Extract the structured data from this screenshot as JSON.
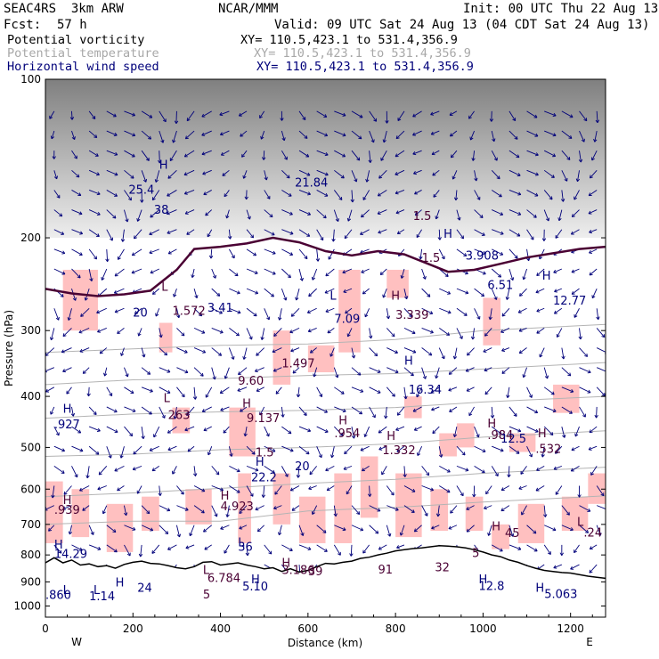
{
  "header": {
    "model": "SEAC4RS  3km ARW",
    "center": "NCAR/MMM",
    "init": "Init: 00 UTC Thu 22 Aug 13",
    "fcst_label": "Fcst:",
    "fcst_value": "57 h",
    "valid": "Valid: 09 UTC Sat 24 Aug 13 (04 CDT Sat 24 Aug 13)"
  },
  "legend": [
    {
      "name": "Potential vorticity",
      "xy": "XY= 110.5,423.1 to 531.4,356.9",
      "color": "#000000",
      "xy_color": "#000000"
    },
    {
      "name": "Potential temperature",
      "xy": "XY= 110.5,423.1 to 531.4,356.9",
      "color": "#a8a8a8",
      "xy_color": "#a8a8a8"
    },
    {
      "name": "Horizontal wind speed",
      "xy": "XY= 110.5,423.1 to 531.4,356.9",
      "color": "#00007a",
      "xy_color": "#00007a"
    }
  ],
  "colors": {
    "pv_line": "#4a0033",
    "theta_line": "#b4b4b4",
    "wind": "#00007a",
    "pink_fill": "#ffc0c0",
    "terrain_line": "#000000",
    "shade_dark": "#555555",
    "shade_light": "#d8d8d8"
  },
  "chart_data": {
    "type": "cross-section",
    "xlabel": "Distance (km)",
    "ylabel": "Pressure (hPa)",
    "xlim": [
      0,
      1280
    ],
    "ylim": [
      100,
      1050
    ],
    "y_scale": "log (pressure, inverted)",
    "x_ticks": [
      0,
      200,
      400,
      600,
      800,
      1000,
      1200
    ],
    "y_ticks": [
      100,
      200,
      300,
      400,
      500,
      600,
      700,
      800,
      900,
      1000
    ],
    "end_labels": {
      "left": "W",
      "right": "E"
    },
    "terrain_surface": [
      [
        0,
        828
      ],
      [
        20,
        810
      ],
      [
        40,
        828
      ],
      [
        60,
        818
      ],
      [
        80,
        836
      ],
      [
        100,
        832
      ],
      [
        120,
        842
      ],
      [
        140,
        838
      ],
      [
        160,
        848
      ],
      [
        180,
        834
      ],
      [
        200,
        826
      ],
      [
        220,
        822
      ],
      [
        240,
        830
      ],
      [
        260,
        832
      ],
      [
        280,
        838
      ],
      [
        300,
        846
      ],
      [
        320,
        850
      ],
      [
        340,
        842
      ],
      [
        360,
        826
      ],
      [
        380,
        824
      ],
      [
        400,
        836
      ],
      [
        420,
        832
      ],
      [
        440,
        828
      ],
      [
        460,
        836
      ],
      [
        480,
        842
      ],
      [
        500,
        850
      ],
      [
        520,
        846
      ],
      [
        540,
        860
      ],
      [
        560,
        850
      ],
      [
        580,
        862
      ],
      [
        600,
        856
      ],
      [
        620,
        842
      ],
      [
        640,
        830
      ],
      [
        660,
        832
      ],
      [
        680,
        826
      ],
      [
        700,
        822
      ],
      [
        720,
        812
      ],
      [
        740,
        808
      ],
      [
        760,
        800
      ],
      [
        780,
        794
      ],
      [
        800,
        786
      ],
      [
        820,
        782
      ],
      [
        840,
        778
      ],
      [
        860,
        776
      ],
      [
        880,
        772
      ],
      [
        900,
        768
      ],
      [
        920,
        770
      ],
      [
        940,
        772
      ],
      [
        960,
        776
      ],
      [
        980,
        782
      ],
      [
        1000,
        790
      ],
      [
        1020,
        800
      ],
      [
        1040,
        806
      ],
      [
        1060,
        818
      ],
      [
        1080,
        826
      ],
      [
        1100,
        838
      ],
      [
        1120,
        848
      ],
      [
        1140,
        856
      ],
      [
        1160,
        860
      ],
      [
        1180,
        864
      ],
      [
        1200,
        866
      ],
      [
        1220,
        872
      ],
      [
        1240,
        878
      ],
      [
        1260,
        882
      ],
      [
        1280,
        886
      ]
    ],
    "tropopause_pv": [
      [
        0,
        250
      ],
      [
        60,
        255
      ],
      [
        120,
        258
      ],
      [
        180,
        256
      ],
      [
        240,
        252
      ],
      [
        300,
        230
      ],
      [
        340,
        210
      ],
      [
        400,
        208
      ],
      [
        460,
        205
      ],
      [
        520,
        200
      ],
      [
        580,
        204
      ],
      [
        640,
        212
      ],
      [
        700,
        216
      ],
      [
        760,
        212
      ],
      [
        820,
        215
      ],
      [
        880,
        225
      ],
      [
        920,
        232
      ],
      [
        980,
        230
      ],
      [
        1040,
        224
      ],
      [
        1100,
        218
      ],
      [
        1160,
        214
      ],
      [
        1220,
        210
      ],
      [
        1280,
        208
      ]
    ],
    "theta_isentropes": [
      {
        "pts": [
          [
            0,
            330
          ],
          [
            200,
            325
          ],
          [
            400,
            320
          ],
          [
            600,
            318
          ],
          [
            800,
            312
          ],
          [
            1000,
            300
          ],
          [
            1280,
            292
          ]
        ]
      },
      {
        "pts": [
          [
            0,
            380
          ],
          [
            200,
            372
          ],
          [
            400,
            370
          ],
          [
            600,
            365
          ],
          [
            800,
            362
          ],
          [
            1000,
            355
          ],
          [
            1280,
            345
          ]
        ]
      },
      {
        "pts": [
          [
            0,
            440
          ],
          [
            200,
            432
          ],
          [
            400,
            428
          ],
          [
            600,
            425
          ],
          [
            800,
            420
          ],
          [
            1000,
            410
          ],
          [
            1280,
            400
          ]
        ]
      },
      {
        "pts": [
          [
            0,
            520
          ],
          [
            200,
            515
          ],
          [
            400,
            505
          ],
          [
            600,
            500
          ],
          [
            800,
            492
          ],
          [
            1000,
            478
          ],
          [
            1280,
            465
          ]
        ]
      },
      {
        "pts": [
          [
            0,
            620
          ],
          [
            200,
            610
          ],
          [
            400,
            598
          ],
          [
            600,
            585
          ],
          [
            800,
            575
          ],
          [
            1000,
            560
          ],
          [
            1280,
            545
          ]
        ]
      },
      {
        "pts": [
          [
            0,
            700
          ],
          [
            200,
            690
          ],
          [
            400,
            690
          ],
          [
            600,
            660
          ],
          [
            800,
            650
          ],
          [
            1000,
            635
          ],
          [
            1280,
            618
          ]
        ]
      }
    ],
    "pink_regions": [
      {
        "x": [
          40,
          120
        ],
        "p": [
          230,
          300
        ]
      },
      {
        "x": [
          260,
          290
        ],
        "p": [
          290,
          330
        ]
      },
      {
        "x": [
          290,
          330
        ],
        "p": [
          420,
          470
        ]
      },
      {
        "x": [
          420,
          480
        ],
        "p": [
          420,
          520
        ]
      },
      {
        "x": [
          520,
          560
        ],
        "p": [
          300,
          380
        ]
      },
      {
        "x": [
          600,
          660
        ],
        "p": [
          320,
          360
        ]
      },
      {
        "x": [
          670,
          720
        ],
        "p": [
          230,
          330
        ]
      },
      {
        "x": [
          780,
          830
        ],
        "p": [
          230,
          260
        ]
      },
      {
        "x": [
          820,
          860
        ],
        "p": [
          400,
          440
        ]
      },
      {
        "x": [
          900,
          940
        ],
        "p": [
          470,
          520
        ]
      },
      {
        "x": [
          940,
          980
        ],
        "p": [
          450,
          500
        ]
      },
      {
        "x": [
          1000,
          1040
        ],
        "p": [
          260,
          320
        ]
      },
      {
        "x": [
          1060,
          1120
        ],
        "p": [
          470,
          510
        ]
      },
      {
        "x": [
          1160,
          1220
        ],
        "p": [
          380,
          430
        ]
      },
      {
        "x": [
          0,
          40
        ],
        "p": [
          580,
          760
        ]
      },
      {
        "x": [
          60,
          100
        ],
        "p": [
          600,
          740
        ]
      },
      {
        "x": [
          140,
          200
        ],
        "p": [
          640,
          790
        ]
      },
      {
        "x": [
          220,
          260
        ],
        "p": [
          620,
          720
        ]
      },
      {
        "x": [
          320,
          380
        ],
        "p": [
          600,
          700
        ]
      },
      {
        "x": [
          440,
          470
        ],
        "p": [
          560,
          760
        ]
      },
      {
        "x": [
          520,
          560
        ],
        "p": [
          560,
          700
        ]
      },
      {
        "x": [
          580,
          640
        ],
        "p": [
          620,
          760
        ]
      },
      {
        "x": [
          660,
          700
        ],
        "p": [
          560,
          760
        ]
      },
      {
        "x": [
          720,
          760
        ],
        "p": [
          520,
          680
        ]
      },
      {
        "x": [
          800,
          860
        ],
        "p": [
          560,
          740
        ]
      },
      {
        "x": [
          880,
          920
        ],
        "p": [
          600,
          720
        ]
      },
      {
        "x": [
          960,
          1000
        ],
        "p": [
          620,
          720
        ]
      },
      {
        "x": [
          1020,
          1060
        ],
        "p": [
          700,
          780
        ]
      },
      {
        "x": [
          1080,
          1140
        ],
        "p": [
          640,
          760
        ]
      },
      {
        "x": [
          1180,
          1240
        ],
        "p": [
          620,
          720
        ]
      },
      {
        "x": [
          1240,
          1280
        ],
        "p": [
          560,
          640
        ]
      }
    ],
    "upper_shading": {
      "p_top": 100,
      "p_bottom": 200
    },
    "annotations": [
      {
        "text": "25.4",
        "x": 190,
        "p": 165,
        "color": "#00007a"
      },
      {
        "text": "H",
        "x": 260,
        "p": 148,
        "color": "#00007a"
      },
      {
        "text": "38",
        "x": 248,
        "p": 180,
        "color": "#00007a"
      },
      {
        "text": "21.84",
        "x": 570,
        "p": 160,
        "color": "#00007a"
      },
      {
        "text": "H",
        "x": 910,
        "p": 200,
        "color": "#00007a"
      },
      {
        "text": "3.908",
        "x": 960,
        "p": 220,
        "color": "#00007a"
      },
      {
        "text": "6.51",
        "x": 1010,
        "p": 250,
        "color": "#00007a"
      },
      {
        "text": "H",
        "x": 1135,
        "p": 240,
        "color": "#00007a"
      },
      {
        "text": "12.77",
        "x": 1160,
        "p": 268,
        "color": "#00007a"
      },
      {
        "text": "1.5",
        "x": 840,
        "p": 185,
        "color": "#4a0033"
      },
      {
        "text": "1.5",
        "x": 860,
        "p": 222,
        "color": "#4a0033"
      },
      {
        "text": "L",
        "x": 265,
        "p": 252,
        "color": "#4a0033"
      },
      {
        "text": "20",
        "x": 200,
        "p": 282,
        "color": "#00007a"
      },
      {
        "text": "1.572",
        "x": 290,
        "p": 280,
        "color": "#4a0033"
      },
      {
        "text": "3.41",
        "x": 370,
        "p": 276,
        "color": "#00007a"
      },
      {
        "text": "L",
        "x": 650,
        "p": 262,
        "color": "#00007a"
      },
      {
        "text": "7.09",
        "x": 660,
        "p": 290,
        "color": "#00007a"
      },
      {
        "text": "H",
        "x": 790,
        "p": 262,
        "color": "#4a0033"
      },
      {
        "text": "3.339",
        "x": 800,
        "p": 285,
        "color": "#4a0033"
      },
      {
        "text": "1.497",
        "x": 540,
        "p": 352,
        "color": "#4a0033"
      },
      {
        "text": "H",
        "x": 820,
        "p": 348,
        "color": "#00007a"
      },
      {
        "text": "16.34",
        "x": 830,
        "p": 395,
        "color": "#00007a"
      },
      {
        "text": "9.60",
        "x": 440,
        "p": 380,
        "color": "#4a0033"
      },
      {
        "text": "L",
        "x": 270,
        "p": 410,
        "color": "#4a0033"
      },
      {
        "text": "263",
        "x": 280,
        "p": 442,
        "color": "#4a0033"
      },
      {
        "text": "H",
        "x": 40,
        "p": 430,
        "color": "#00007a"
      },
      {
        "text": ".927",
        "x": 20,
        "p": 460,
        "color": "#00007a"
      },
      {
        "text": "H",
        "x": 450,
        "p": 420,
        "color": "#4a0033"
      },
      {
        "text": "9.137",
        "x": 460,
        "p": 448,
        "color": "#4a0033"
      },
      {
        "text": "H",
        "x": 670,
        "p": 452,
        "color": "#4a0033"
      },
      {
        "text": ".954",
        "x": 660,
        "p": 478,
        "color": "#4a0033"
      },
      {
        "text": "H",
        "x": 1010,
        "p": 458,
        "color": "#4a0033"
      },
      {
        "text": ".984",
        "x": 1010,
        "p": 482,
        "color": "#4a0033"
      },
      {
        "text": "12.5",
        "x": 1040,
        "p": 490,
        "color": "#00007a"
      },
      {
        "text": "H",
        "x": 1125,
        "p": 478,
        "color": "#4a0033"
      },
      {
        "text": ".532",
        "x": 1120,
        "p": 512,
        "color": "#4a0033"
      },
      {
        "text": "H",
        "x": 780,
        "p": 484,
        "color": "#4a0033"
      },
      {
        "text": "1.332",
        "x": 770,
        "p": 515,
        "color": "#4a0033"
      },
      {
        "text": "1.5",
        "x": 480,
        "p": 520,
        "color": "#4a0033"
      },
      {
        "text": "20",
        "x": 570,
        "p": 552,
        "color": "#00007a"
      },
      {
        "text": "H",
        "x": 480,
        "p": 542,
        "color": "#00007a"
      },
      {
        "text": "22.2",
        "x": 470,
        "p": 580,
        "color": "#00007a"
      },
      {
        "text": "H",
        "x": 400,
        "p": 628,
        "color": "#4a0033"
      },
      {
        "text": "4.923",
        "x": 400,
        "p": 658,
        "color": "#4a0033"
      },
      {
        "text": "H",
        "x": 40,
        "p": 640,
        "color": "#4a0033"
      },
      {
        "text": ".939",
        "x": 20,
        "p": 668,
        "color": "#4a0033"
      },
      {
        "text": "H",
        "x": 1020,
        "p": 718,
        "color": "#4a0033"
      },
      {
        "text": "45",
        "x": 1050,
        "p": 740,
        "color": "#4a0033"
      },
      {
        "text": "L",
        "x": 1215,
        "p": 704,
        "color": "#4a0033"
      },
      {
        "text": ".24",
        "x": 1230,
        "p": 738,
        "color": "#4a0033"
      },
      {
        "text": "H",
        "x": 20,
        "p": 778,
        "color": "#00007a"
      },
      {
        "text": "14.29",
        "x": 20,
        "p": 810,
        "color": "#00007a"
      },
      {
        "text": "L",
        "x": 440,
        "p": 770,
        "color": "#00007a"
      },
      {
        "text": "36",
        "x": 440,
        "p": 786,
        "color": "#00007a"
      },
      {
        "text": "5",
        "x": 975,
        "p": 808,
        "color": "#4a0033"
      },
      {
        "text": "H",
        "x": 540,
        "p": 842,
        "color": "#4a0033"
      },
      {
        "text": "3.186",
        "x": 540,
        "p": 870,
        "color": "#4a0033"
      },
      {
        "text": "39",
        "x": 600,
        "p": 875,
        "color": "#4a0033"
      },
      {
        "text": "32",
        "x": 890,
        "p": 860,
        "color": "#4a0033"
      },
      {
        "text": "91",
        "x": 760,
        "p": 868,
        "color": "#4a0033"
      },
      {
        "text": "L",
        "x": 360,
        "p": 870,
        "color": "#4a0033"
      },
      {
        "text": "6.784",
        "x": 370,
        "p": 900,
        "color": "#4a0033"
      },
      {
        "text": "H",
        "x": 470,
        "p": 905,
        "color": "#00007a"
      },
      {
        "text": "5.10",
        "x": 450,
        "p": 935,
        "color": "#00007a"
      },
      {
        "text": "H",
        "x": 160,
        "p": 918,
        "color": "#00007a"
      },
      {
        "text": "24",
        "x": 210,
        "p": 940,
        "color": "#00007a"
      },
      {
        "text": "L",
        "x": 110,
        "p": 948,
        "color": "#00007a"
      },
      {
        "text": "L",
        "x": 40,
        "p": 948,
        "color": "#00007a"
      },
      {
        "text": ".860",
        "x": 0,
        "p": 970,
        "color": "#00007a"
      },
      {
        "text": "1.14",
        "x": 100,
        "p": 975,
        "color": "#00007a"
      },
      {
        "text": "H",
        "x": 990,
        "p": 905,
        "color": "#00007a"
      },
      {
        "text": "12.8",
        "x": 990,
        "p": 932,
        "color": "#00007a"
      },
      {
        "text": "H",
        "x": 1120,
        "p": 940,
        "color": "#00007a"
      },
      {
        "text": "5.063",
        "x": 1140,
        "p": 965,
        "color": "#00007a"
      },
      {
        "text": "5",
        "x": 360,
        "p": 968,
        "color": "#4a0033"
      }
    ]
  }
}
